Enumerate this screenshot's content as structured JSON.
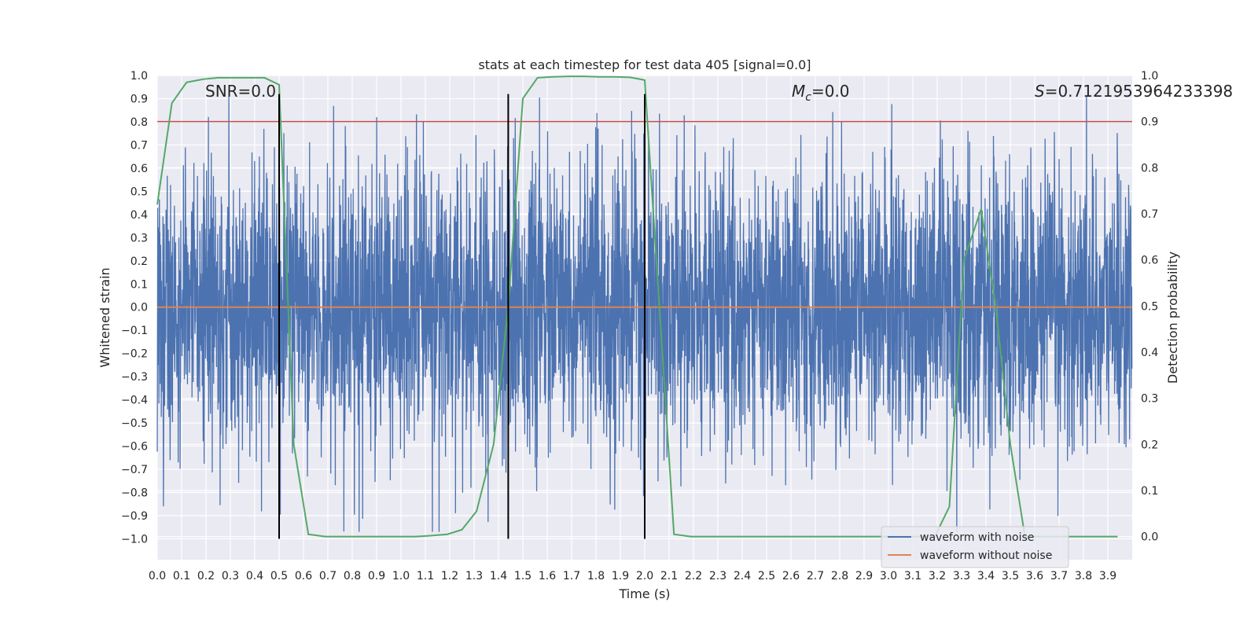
{
  "chart_data": {
    "type": "line",
    "title": "stats at each timestep for test data 405 [signal=0.0]",
    "xlabel": "Time (s)",
    "ylabel": "Whitened strain",
    "y2label": "Detection probability",
    "xlim": [
      0.0,
      4.0
    ],
    "ylim": [
      -1.09,
      1.0
    ],
    "y2lim": [
      -0.05,
      1.0
    ],
    "xticks": [
      "0.0",
      "0.1",
      "0.2",
      "0.3",
      "0.4",
      "0.5",
      "0.6",
      "0.7",
      "0.8",
      "0.9",
      "1.0",
      "1.1",
      "1.2",
      "1.3",
      "1.4",
      "1.5",
      "1.6",
      "1.7",
      "1.8",
      "1.9",
      "2.0",
      "2.1",
      "2.2",
      "2.3",
      "2.4",
      "2.5",
      "2.6",
      "2.7",
      "2.8",
      "2.9",
      "3.0",
      "3.1",
      "3.2",
      "3.3",
      "3.4",
      "3.5",
      "3.6",
      "3.7",
      "3.8",
      "3.9"
    ],
    "yticks": [
      "1.0",
      "0.9",
      "0.8",
      "0.7",
      "0.6",
      "0.5",
      "0.4",
      "0.3",
      "0.2",
      "0.1",
      "0.0",
      "-0.1",
      "-0.2",
      "-0.3",
      "-0.4",
      "-0.5",
      "-0.6",
      "-0.7",
      "-0.8",
      "-0.9",
      "-1.0"
    ],
    "y2ticks": [
      "1.0",
      "0.9",
      "0.8",
      "0.7",
      "0.6",
      "0.5",
      "0.4",
      "0.3",
      "0.2",
      "0.1",
      "0.0"
    ],
    "grid": true,
    "legend_position": "lower-right",
    "annotations": {
      "snr": "SNR=0.0",
      "mc_symbol": "M",
      "mc_sub": "c",
      "mc_value": "=0.0",
      "s_symbol": "S",
      "s_value": "=0.7121953964233398"
    },
    "threshold_line": {
      "axis": "right",
      "y": 0.9,
      "color": "#c44e52"
    },
    "vertical_lines": {
      "x": [
        0.5,
        1.44,
        2.0
      ],
      "ymin": -1.0,
      "ymax": 0.92,
      "color": "#000000"
    },
    "series": [
      {
        "name": "waveform with noise",
        "color": "#4c72b0",
        "axis": "left",
        "noise_amplitude": 0.3,
        "extremes": [
          -0.97,
          0.91
        ]
      },
      {
        "name": "waveform without noise",
        "color": "#dd8452",
        "axis": "left",
        "x": [
          0.0,
          4.0
        ],
        "y": [
          0.0,
          0.0
        ]
      },
      {
        "name": "detection probability",
        "color": "#55a868",
        "axis": "right",
        "x": [
          0.0,
          0.06,
          0.12,
          0.19,
          0.25,
          0.31,
          0.38,
          0.44,
          0.5,
          0.56,
          0.62,
          0.69,
          0.75,
          0.81,
          0.88,
          0.94,
          1.0,
          1.06,
          1.12,
          1.19,
          1.25,
          1.31,
          1.38,
          1.44,
          1.5,
          1.56,
          1.62,
          1.69,
          1.75,
          1.81,
          1.88,
          1.94,
          2.0,
          2.06,
          2.12,
          2.19,
          2.25,
          2.31,
          2.38,
          2.44,
          2.5,
          2.56,
          2.62,
          2.69,
          2.75,
          2.81,
          2.88,
          2.94,
          3.0,
          3.06,
          3.12,
          3.19,
          3.25,
          3.31,
          3.38,
          3.44,
          3.5,
          3.56,
          3.62,
          3.69,
          3.75,
          3.81,
          3.88,
          3.94
        ],
        "y": [
          0.72,
          0.94,
          0.985,
          0.992,
          0.995,
          0.995,
          0.995,
          0.995,
          0.98,
          0.2,
          0.005,
          0.0,
          0.0,
          0.0,
          0.0,
          0.0,
          0.0,
          0.0,
          0.002,
          0.005,
          0.015,
          0.055,
          0.2,
          0.5,
          0.95,
          0.995,
          0.997,
          0.998,
          0.998,
          0.997,
          0.997,
          0.996,
          0.99,
          0.5,
          0.005,
          0.0,
          0.0,
          0.0,
          0.0,
          0.0,
          0.0,
          0.0,
          0.0,
          0.0,
          0.0,
          0.0,
          0.0,
          0.0,
          0.0,
          0.0,
          0.0,
          0.0,
          0.065,
          0.6,
          0.71,
          0.5,
          0.2,
          0.0,
          0.0,
          0.0,
          0.0,
          0.0,
          0.0,
          0.0
        ]
      }
    ]
  }
}
